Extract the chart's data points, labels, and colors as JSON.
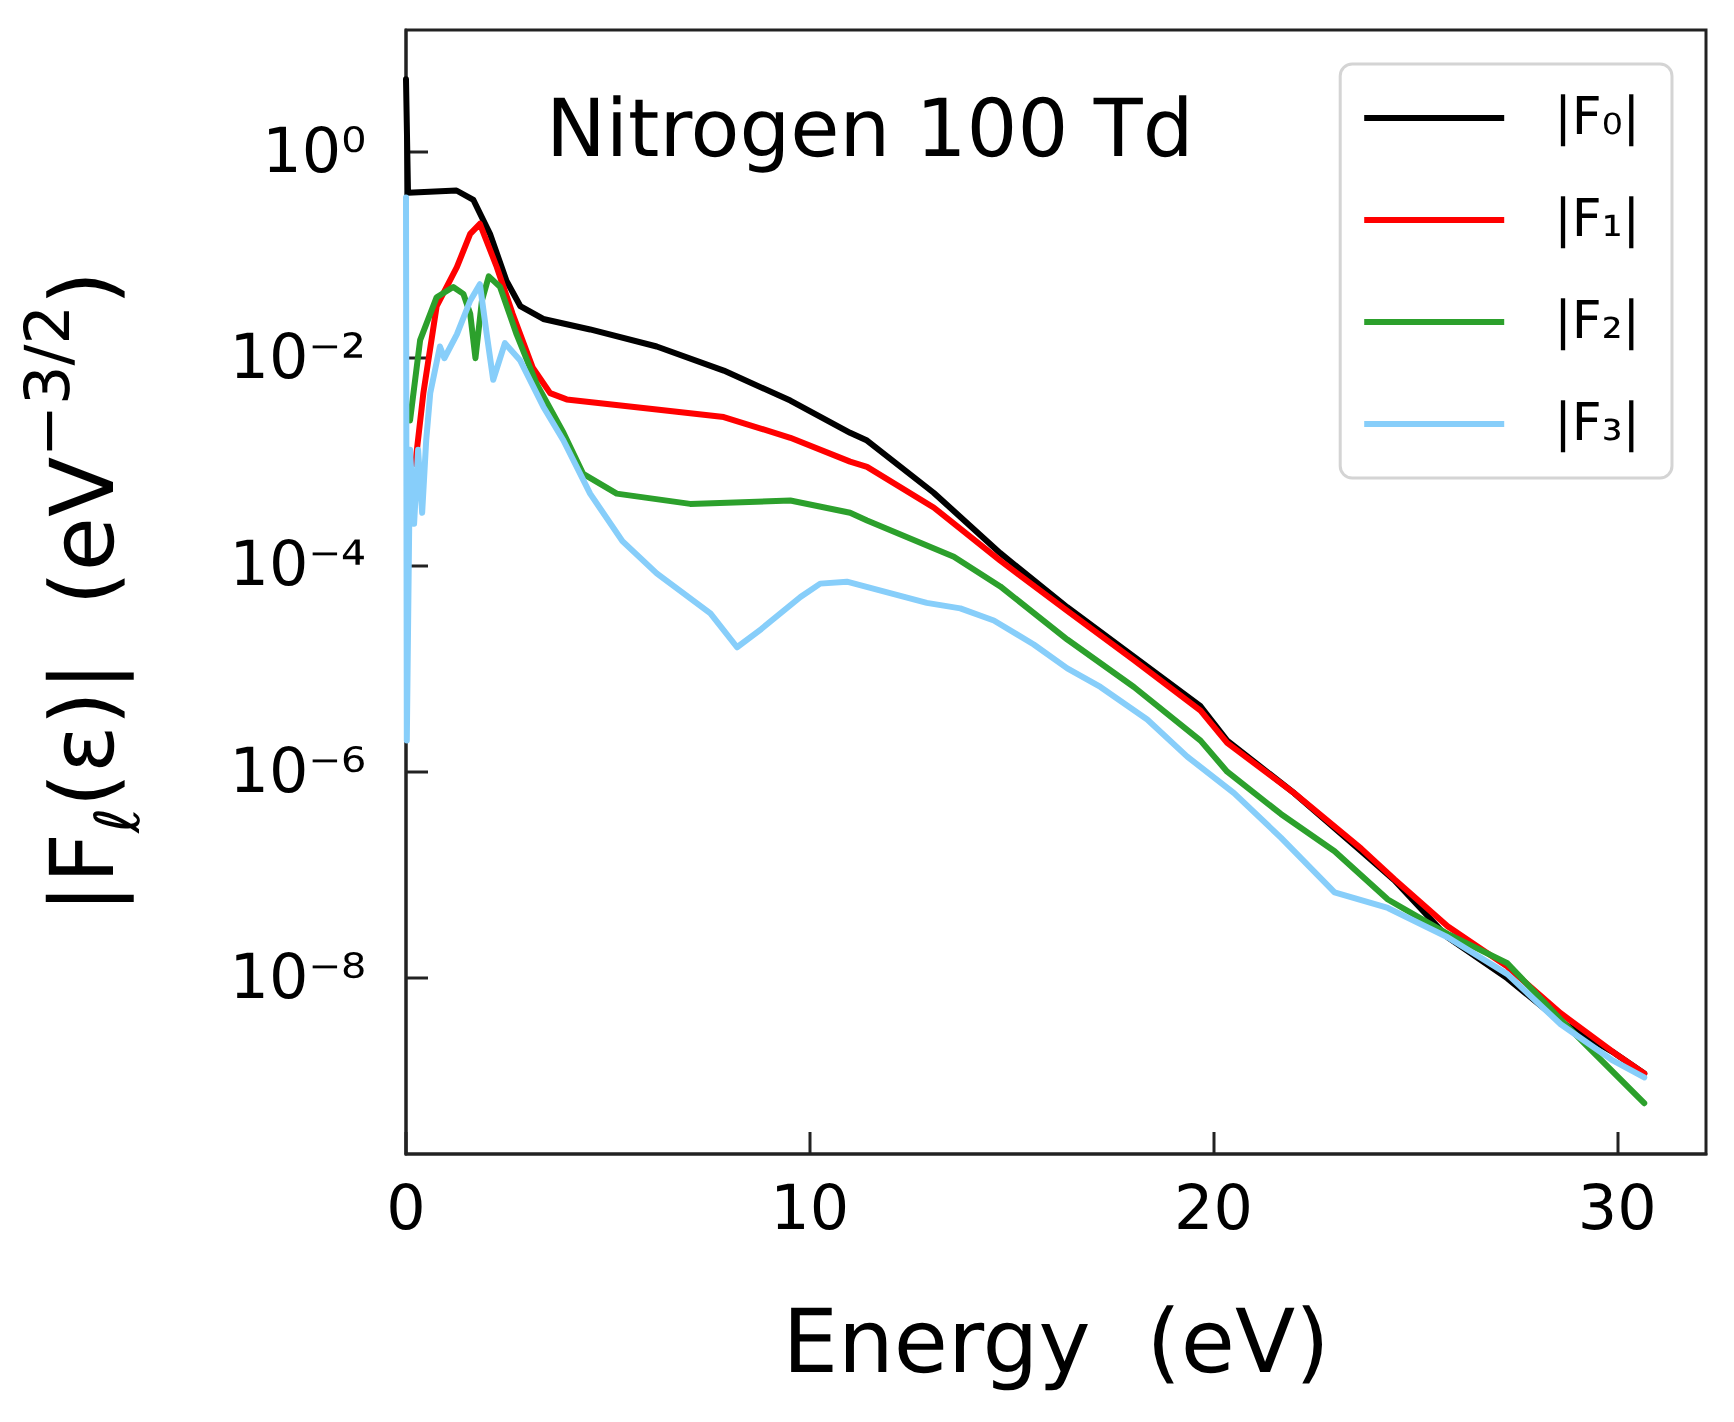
{
  "chart_data": {
    "type": "line",
    "title": "Nitrogen 100 Td",
    "xlabel": "Energy  (eV)",
    "ylabel": "|F$_{ℓ}$(ε)|  (eV$^{−3/2}$)",
    "log": "y",
    "legend": "top right",
    "xlim": [
      0,
      32.2
    ],
    "xticks": [
      0,
      10,
      20,
      30
    ],
    "ylim": [
      2e-10,
      15
    ],
    "yticks": [
      {
        "value": 1,
        "label": "10⁰"
      },
      {
        "value": 0.01,
        "label": "10⁻²"
      },
      {
        "value": 0.0001,
        "label": "10⁻⁴"
      },
      {
        "value": 1e-06,
        "label": "10⁻⁶"
      },
      {
        "value": 1e-08,
        "label": "10⁻⁸"
      }
    ],
    "series": [
      {
        "name": "|F₀|",
        "color": "#000000",
        "x": [
          0,
          0.05,
          1.25,
          1.67,
          2.08,
          2.49,
          2.83,
          3.4,
          4.56,
          6.21,
          7.87,
          9.52,
          11.0,
          11.42,
          13.07,
          14.72,
          16.38,
          18.03,
          19.68,
          20.34,
          22.0,
          23.66,
          24.48,
          25.8,
          27.28,
          28.6,
          29.93,
          30.67
        ],
        "values": [
          5,
          0.4,
          0.42,
          0.34,
          0.16,
          0.056,
          0.032,
          0.024,
          0.019,
          0.013,
          0.0076,
          0.0039,
          0.0019,
          0.0016,
          0.0005,
          0.00013,
          3.9e-05,
          1.3e-05,
          4.3e-06,
          2e-06,
          6.2e-07,
          1.7e-07,
          8.9e-08,
          2.5e-08,
          1e-08,
          3.8e-09,
          1.9e-09,
          1.2e-09
        ]
      },
      {
        "name": "|F₁|",
        "color": "#ff0000",
        "x": [
          0.23,
          0.43,
          0.76,
          1.26,
          1.59,
          1.83,
          2.25,
          2.64,
          3.14,
          3.57,
          3.98,
          6.21,
          7.87,
          9.52,
          11.0,
          11.42,
          13.07,
          14.72,
          16.38,
          18.03,
          19.68,
          20.34,
          22.0,
          23.66,
          24.48,
          25.8,
          27.28,
          28.6,
          29.93,
          30.67
        ],
        "values": [
          0.00095,
          0.0046,
          0.032,
          0.076,
          0.16,
          0.2,
          0.076,
          0.027,
          0.0081,
          0.0046,
          0.004,
          0.0032,
          0.0027,
          0.0017,
          0.001,
          0.00089,
          0.00036,
          0.00011,
          3.6e-05,
          1.2e-05,
          3.9e-06,
          1.9e-06,
          6.2e-07,
          1.8e-07,
          9.1e-08,
          3.2e-08,
          1.3e-08,
          4.6e-09,
          1.9e-09,
          1.2e-09
        ]
      },
      {
        "name": "|F₂|",
        "color": "#2ca02c",
        "x": [
          0.1,
          0.35,
          0.76,
          1.17,
          1.42,
          1.59,
          1.72,
          1.88,
          2.05,
          2.33,
          2.74,
          3.24,
          3.9,
          4.39,
          5.22,
          7.04,
          9.52,
          11.0,
          11.42,
          13.57,
          14.72,
          16.38,
          18.03,
          19.68,
          20.34,
          21.67,
          23.0,
          24.32,
          25.8,
          27.28,
          28.6,
          30.67
        ],
        "values": [
          0.0025,
          0.015,
          0.039,
          0.049,
          0.042,
          0.027,
          0.01,
          0.036,
          0.062,
          0.049,
          0.017,
          0.0056,
          0.0019,
          0.00076,
          0.00049,
          0.00039,
          0.00042,
          0.00032,
          0.00027,
          0.00012,
          6.2e-05,
          1.9e-05,
          6.6e-06,
          2e-06,
          1e-06,
          3.9e-07,
          1.7e-07,
          5.8e-08,
          2.7e-08,
          1.4e-08,
          4e-09,
          6.2e-10
        ]
      },
      {
        "name": "|F₃|",
        "color": "#87cefa",
        "x": [
          0,
          0.02,
          0.1,
          0.2,
          0.3,
          0.4,
          0.5,
          0.6,
          0.84,
          0.95,
          1.26,
          1.59,
          1.83,
          2.0,
          2.16,
          2.45,
          2.83,
          3.4,
          3.9,
          4.56,
          5.36,
          6.21,
          7.54,
          8.2,
          8.8,
          9.77,
          10.26,
          10.92,
          12.9,
          13.73,
          14.56,
          15.55,
          16.38,
          17.2,
          18.36,
          19.35,
          20.51,
          21.67,
          23.0,
          24.32,
          25.8,
          27.28,
          28.6,
          29.9,
          30.67
        ],
        "values": [
          0.36,
          2e-06,
          0.0013,
          0.00025,
          0.0013,
          0.00032,
          0.0016,
          0.0046,
          0.013,
          0.01,
          0.017,
          0.036,
          0.052,
          0.017,
          0.0062,
          0.014,
          0.0095,
          0.0034,
          0.0016,
          0.00049,
          0.00017,
          8.3e-05,
          3.4e-05,
          1.6e-05,
          2.4e-05,
          4.9e-05,
          6.6e-05,
          6.9e-05,
          4.3e-05,
          3.8e-05,
          2.9e-05,
          1.7e-05,
          1e-05,
          6.6e-06,
          3.2e-06,
          1.4e-06,
          6.2e-07,
          2.3e-07,
          6.8e-08,
          4.8e-08,
          2.5e-08,
          1.1e-08,
          3.6e-09,
          1.6e-09,
          1.1e-09
        ]
      }
    ]
  }
}
